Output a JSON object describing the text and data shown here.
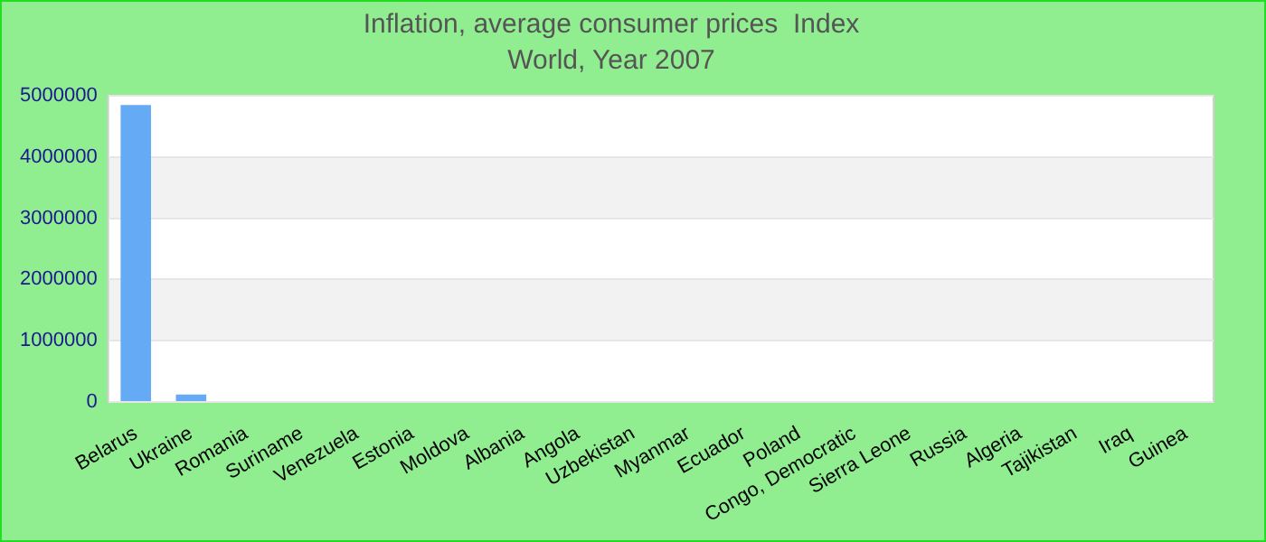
{
  "chart_data": {
    "type": "bar",
    "title": "Inflation, average consumer prices  Index",
    "subtitle": "World, Year 2007",
    "categories": [
      "Belarus",
      "Ukraine",
      "Romania",
      "Suriname",
      "Venezuela",
      "Estonia",
      "Moldova",
      "Albania",
      "Angola",
      "Uzbekistan",
      "Myanmar",
      "Ecuador",
      "Poland",
      "Congo, Democratic",
      "Sierra Leone",
      "Russia",
      "Algeria",
      "Tajikistan",
      "Iraq",
      "Guinea"
    ],
    "values": [
      4850000,
      120000,
      0,
      0,
      0,
      0,
      0,
      0,
      0,
      0,
      0,
      0,
      0,
      0,
      0,
      0,
      0,
      0,
      0,
      0
    ],
    "color": "#64aaf5",
    "ylim": [
      0,
      5000000
    ],
    "yticks": [
      0,
      1000000,
      2000000,
      3000000,
      4000000,
      5000000
    ],
    "grid": "y"
  }
}
